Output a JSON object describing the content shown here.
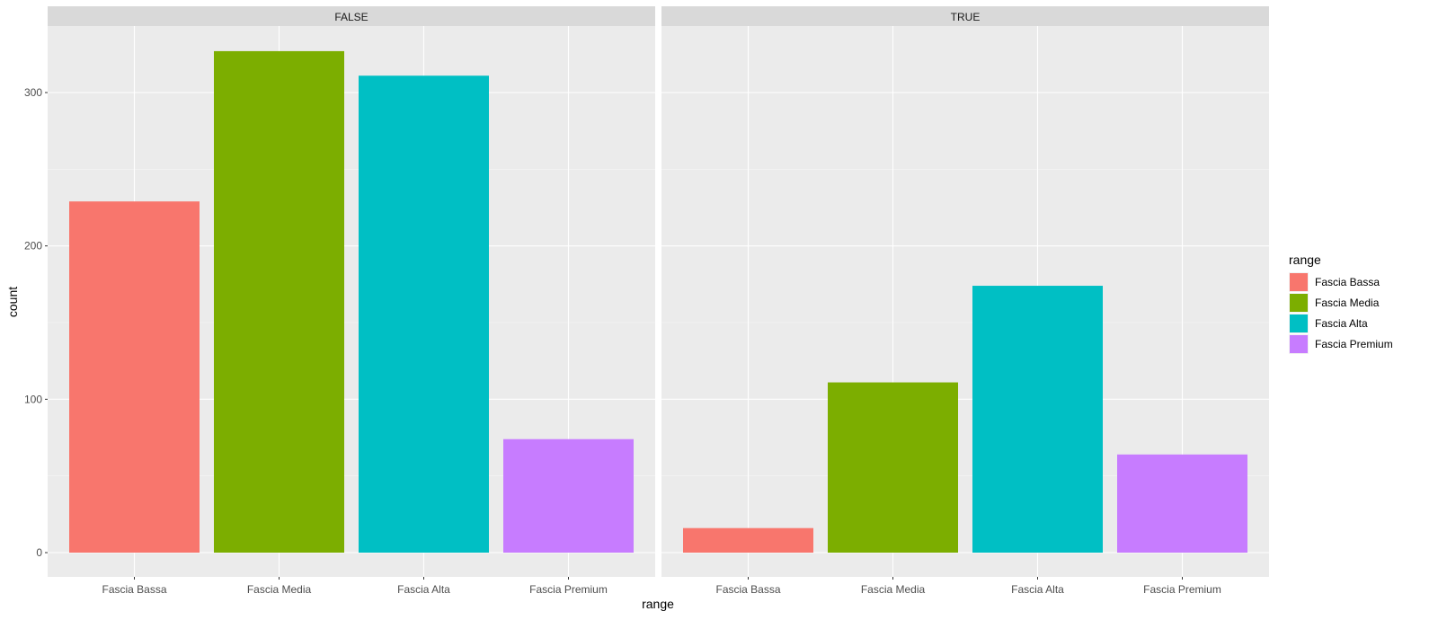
{
  "chart_data": {
    "type": "bar",
    "xlabel": "range",
    "ylabel": "count",
    "ylim": [
      0,
      340
    ],
    "y_ticks": [
      0,
      100,
      200,
      300
    ],
    "y_tick_labels": [
      "0",
      "100",
      "200",
      "300"
    ],
    "grid": true,
    "legend": {
      "title": "range",
      "position": "right",
      "entries": [
        "Fascia Bassa",
        "Fascia Media",
        "Fascia Alta",
        "Fascia Premium"
      ]
    },
    "categories": [
      "Fascia Bassa",
      "Fascia Media",
      "Fascia Alta",
      "Fascia Premium"
    ],
    "colors": [
      "#F8766D",
      "#7CAE00",
      "#00BFC4",
      "#C77CFF"
    ],
    "facets": [
      {
        "label": "FALSE",
        "values": [
          229,
          327,
          311,
          74
        ]
      },
      {
        "label": "TRUE",
        "values": [
          16,
          111,
          174,
          64
        ]
      }
    ]
  }
}
